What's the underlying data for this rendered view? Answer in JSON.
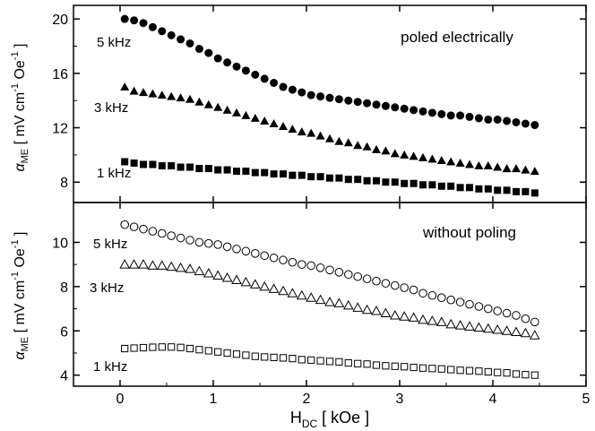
{
  "chart_data": {
    "type": "scatter",
    "x_axis": {
      "label_main": "H",
      "label_sub": "DC",
      "label_rest": " [ kOe ]",
      "range": [
        -0.5,
        5
      ],
      "ticks": [
        0,
        1,
        2,
        3,
        4,
        5
      ]
    },
    "y_axis": {
      "label_main": "α",
      "label_sub": "ME",
      "label_rest1": " [ mV cm",
      "label_sup": "-1",
      "label_rest2": " Oe",
      "label_sup2": "-1",
      "label_rest3": " ]"
    },
    "panels": [
      {
        "title": "poled electrically",
        "ylim": [
          6.5,
          21
        ],
        "yticks": [
          8,
          12,
          16,
          20
        ],
        "marker_fill": "filled",
        "series": [
          {
            "name": "5 kHz",
            "marker": "circle",
            "x": [
              0.05,
              0.15,
              0.25,
              0.35,
              0.45,
              0.55,
              0.65,
              0.75,
              0.85,
              0.95,
              1.05,
              1.15,
              1.25,
              1.35,
              1.45,
              1.55,
              1.65,
              1.75,
              1.85,
              1.95,
              2.05,
              2.15,
              2.25,
              2.35,
              2.45,
              2.55,
              2.65,
              2.75,
              2.85,
              2.95,
              3.05,
              3.15,
              3.25,
              3.35,
              3.45,
              3.55,
              3.65,
              3.75,
              3.85,
              3.95,
              4.05,
              4.15,
              4.25,
              4.35,
              4.45
            ],
            "y": [
              20.0,
              19.9,
              19.7,
              19.4,
              19.1,
              18.8,
              18.5,
              18.2,
              17.8,
              17.5,
              17.1,
              16.8,
              16.5,
              16.2,
              15.9,
              15.6,
              15.3,
              15.0,
              14.8,
              14.6,
              14.4,
              14.3,
              14.2,
              14.1,
              14.0,
              13.9,
              13.8,
              13.7,
              13.6,
              13.5,
              13.4,
              13.3,
              13.2,
              13.1,
              13.0,
              12.9,
              12.9,
              12.8,
              12.7,
              12.6,
              12.6,
              12.5,
              12.4,
              12.3,
              12.2
            ]
          },
          {
            "name": "3 kHz",
            "marker": "triangle",
            "x": [
              0.05,
              0.15,
              0.25,
              0.35,
              0.45,
              0.55,
              0.65,
              0.75,
              0.85,
              0.95,
              1.05,
              1.15,
              1.25,
              1.35,
              1.45,
              1.55,
              1.65,
              1.75,
              1.85,
              1.95,
              2.05,
              2.15,
              2.25,
              2.35,
              2.45,
              2.55,
              2.65,
              2.75,
              2.85,
              2.95,
              3.05,
              3.15,
              3.25,
              3.35,
              3.45,
              3.55,
              3.65,
              3.75,
              3.85,
              3.95,
              4.05,
              4.15,
              4.25,
              4.35,
              4.45
            ],
            "y": [
              15.0,
              14.7,
              14.6,
              14.5,
              14.4,
              14.3,
              14.2,
              14.1,
              13.9,
              13.7,
              13.5,
              13.3,
              13.1,
              12.9,
              12.7,
              12.5,
              12.3,
              12.1,
              11.9,
              11.7,
              11.6,
              11.4,
              11.2,
              11.0,
              10.9,
              10.7,
              10.6,
              10.4,
              10.3,
              10.1,
              10.0,
              9.9,
              9.8,
              9.7,
              9.6,
              9.5,
              9.4,
              9.3,
              9.2,
              9.2,
              9.1,
              9.0,
              9.0,
              8.9,
              8.8
            ]
          },
          {
            "name": "1 kHz",
            "marker": "square",
            "x": [
              0.05,
              0.15,
              0.25,
              0.35,
              0.45,
              0.55,
              0.65,
              0.75,
              0.85,
              0.95,
              1.05,
              1.15,
              1.25,
              1.35,
              1.45,
              1.55,
              1.65,
              1.75,
              1.85,
              1.95,
              2.05,
              2.15,
              2.25,
              2.35,
              2.45,
              2.55,
              2.65,
              2.75,
              2.85,
              2.95,
              3.05,
              3.15,
              3.25,
              3.35,
              3.45,
              3.55,
              3.65,
              3.75,
              3.85,
              3.95,
              4.05,
              4.15,
              4.25,
              4.35,
              4.45
            ],
            "y": [
              9.5,
              9.4,
              9.3,
              9.3,
              9.2,
              9.2,
              9.1,
              9.1,
              9.0,
              9.0,
              8.9,
              8.9,
              8.8,
              8.8,
              8.7,
              8.7,
              8.6,
              8.6,
              8.5,
              8.5,
              8.4,
              8.4,
              8.3,
              8.3,
              8.2,
              8.2,
              8.1,
              8.1,
              8.0,
              8.0,
              7.9,
              7.9,
              7.8,
              7.8,
              7.7,
              7.7,
              7.6,
              7.6,
              7.5,
              7.5,
              7.4,
              7.4,
              7.3,
              7.3,
              7.2
            ]
          }
        ]
      },
      {
        "title": "without poling",
        "ylim": [
          3.5,
          11.8
        ],
        "yticks": [
          4,
          6,
          8,
          10
        ],
        "marker_fill": "open",
        "series": [
          {
            "name": "5 kHz",
            "marker": "circle",
            "x": [
              0.05,
              0.15,
              0.25,
              0.35,
              0.45,
              0.55,
              0.65,
              0.75,
              0.85,
              0.95,
              1.05,
              1.15,
              1.25,
              1.35,
              1.45,
              1.55,
              1.65,
              1.75,
              1.85,
              1.95,
              2.05,
              2.15,
              2.25,
              2.35,
              2.45,
              2.55,
              2.65,
              2.75,
              2.85,
              2.95,
              3.05,
              3.15,
              3.25,
              3.35,
              3.45,
              3.55,
              3.65,
              3.75,
              3.85,
              3.95,
              4.05,
              4.15,
              4.25,
              4.35,
              4.45
            ],
            "y": [
              10.8,
              10.7,
              10.6,
              10.5,
              10.4,
              10.3,
              10.2,
              10.1,
              10.0,
              9.95,
              9.9,
              9.8,
              9.7,
              9.6,
              9.5,
              9.4,
              9.3,
              9.2,
              9.1,
              9.0,
              8.95,
              8.85,
              8.75,
              8.65,
              8.55,
              8.45,
              8.35,
              8.25,
              8.15,
              8.05,
              7.95,
              7.85,
              7.7,
              7.6,
              7.5,
              7.4,
              7.3,
              7.2,
              7.1,
              7.0,
              6.9,
              6.8,
              6.7,
              6.55,
              6.4
            ]
          },
          {
            "name": "3 kHz",
            "marker": "triangle",
            "x": [
              0.05,
              0.15,
              0.25,
              0.35,
              0.45,
              0.55,
              0.65,
              0.75,
              0.85,
              0.95,
              1.05,
              1.15,
              1.25,
              1.35,
              1.45,
              1.55,
              1.65,
              1.75,
              1.85,
              1.95,
              2.05,
              2.15,
              2.25,
              2.35,
              2.45,
              2.55,
              2.65,
              2.75,
              2.85,
              2.95,
              3.05,
              3.15,
              3.25,
              3.35,
              3.45,
              3.55,
              3.65,
              3.75,
              3.85,
              3.95,
              4.05,
              4.15,
              4.25,
              4.35,
              4.45
            ],
            "y": [
              9.0,
              9.0,
              9.0,
              8.95,
              8.95,
              8.9,
              8.85,
              8.8,
              8.7,
              8.6,
              8.5,
              8.4,
              8.3,
              8.2,
              8.1,
              8.0,
              7.9,
              7.8,
              7.7,
              7.6,
              7.5,
              7.4,
              7.3,
              7.25,
              7.15,
              7.05,
              6.95,
              6.9,
              6.8,
              6.7,
              6.65,
              6.6,
              6.5,
              6.45,
              6.4,
              6.3,
              6.25,
              6.2,
              6.15,
              6.1,
              6.05,
              6.0,
              5.95,
              5.9,
              5.8
            ]
          },
          {
            "name": "1 kHz",
            "marker": "square",
            "x": [
              0.05,
              0.15,
              0.25,
              0.35,
              0.45,
              0.55,
              0.65,
              0.75,
              0.85,
              0.95,
              1.05,
              1.15,
              1.25,
              1.35,
              1.45,
              1.55,
              1.65,
              1.75,
              1.85,
              1.95,
              2.05,
              2.15,
              2.25,
              2.35,
              2.45,
              2.55,
              2.65,
              2.75,
              2.85,
              2.95,
              3.05,
              3.15,
              3.25,
              3.35,
              3.45,
              3.55,
              3.65,
              3.75,
              3.85,
              3.95,
              4.05,
              4.15,
              4.25,
              4.35,
              4.45
            ],
            "y": [
              5.2,
              5.22,
              5.24,
              5.26,
              5.27,
              5.27,
              5.25,
              5.2,
              5.15,
              5.1,
              5.05,
              5.0,
              4.95,
              4.9,
              4.85,
              4.82,
              4.8,
              4.78,
              4.75,
              4.7,
              4.68,
              4.65,
              4.62,
              4.6,
              4.55,
              4.52,
              4.5,
              4.45,
              4.42,
              4.4,
              4.38,
              4.35,
              4.32,
              4.3,
              4.28,
              4.25,
              4.22,
              4.2,
              4.18,
              4.15,
              4.12,
              4.1,
              4.05,
              4.02,
              4.0
            ]
          }
        ]
      }
    ],
    "grid": false,
    "colors": {
      "marker": "#000000",
      "axis": "#000000",
      "background": "#ffffff"
    }
  }
}
